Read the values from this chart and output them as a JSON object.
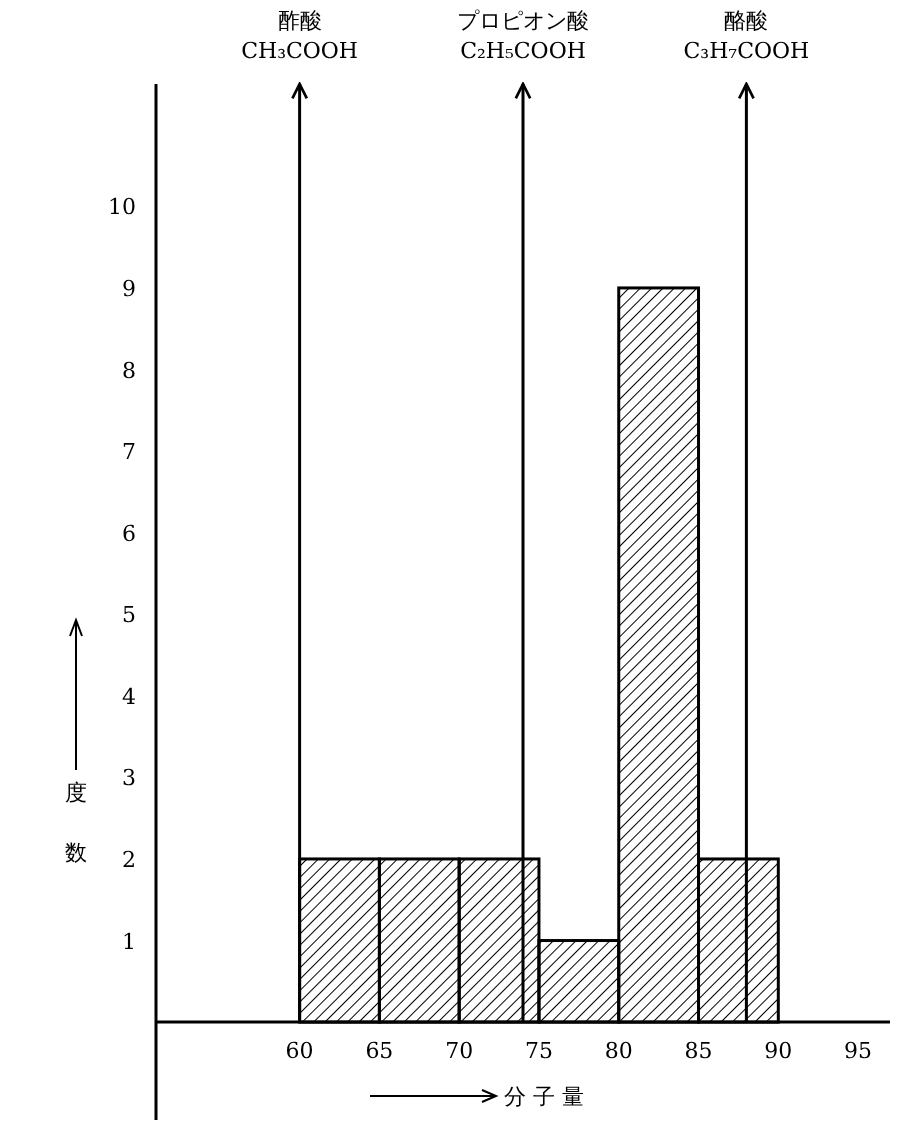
{
  "chart_data": {
    "type": "histogram",
    "bins": [
      60,
      65,
      70,
      75,
      80,
      85,
      90
    ],
    "values": [
      2,
      2,
      2,
      1,
      9,
      2
    ],
    "color": "#000000",
    "xlim": [
      51,
      97
    ],
    "xticks": [
      60,
      65,
      70,
      75,
      80,
      85,
      90,
      95
    ],
    "ylim": [
      -1.2,
      11.5
    ],
    "yticks": [
      1,
      2,
      3,
      4,
      5,
      6,
      7,
      8,
      9,
      10
    ],
    "xlabel": "分子量",
    "ylabel": "度数",
    "grid": false,
    "ref_lines": [
      {
        "axis": "x",
        "value": 60,
        "label": "酢酸\nCH₃COOH",
        "color": "#000000"
      },
      {
        "axis": "x",
        "value": 74,
        "label": "プロピオン酸\nC₂H₅COOH",
        "color": "#000000"
      },
      {
        "axis": "x",
        "value": 88,
        "label": "酪酸\nC₃H₇COOH",
        "color": "#000000"
      }
    ]
  }
}
